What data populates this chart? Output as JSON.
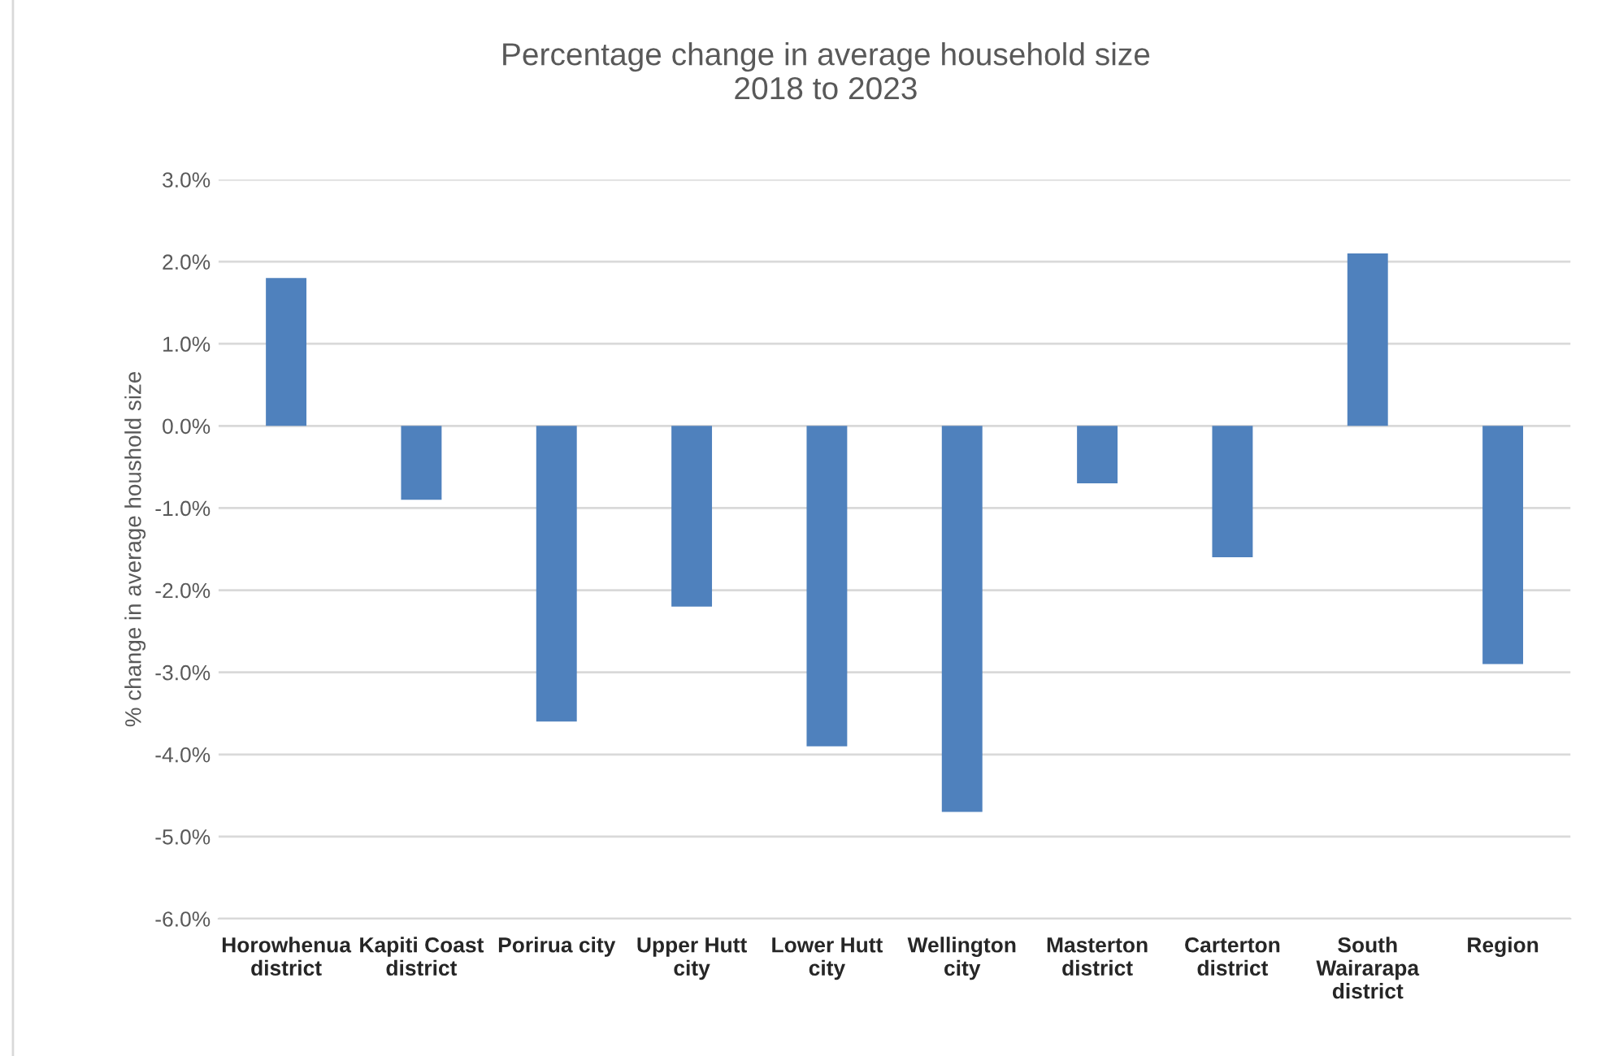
{
  "chart_data": {
    "type": "bar",
    "title": "Percentage change in average household size\n2018 to 2023",
    "ylabel": "% change in average houshold size",
    "categories": [
      "Horowhenua\ndistrict",
      "Kapiti Coast\ndistrict",
      "Porirua city",
      "Upper Hutt\ncity",
      "Lower Hutt\ncity",
      "Wellington\ncity",
      "Masterton\ndistrict",
      "Carterton\ndistrict",
      "South\nWairarapa\ndistrict",
      "Region"
    ],
    "values": [
      1.8,
      -0.9,
      -3.6,
      -2.2,
      -3.9,
      -4.7,
      -0.7,
      -1.6,
      2.1,
      -2.9
    ],
    "color": "#4f81bd",
    "ylim": [
      -6.0,
      3.0
    ],
    "yticks": [
      {
        "value": 3.0,
        "label": "3.0%"
      },
      {
        "value": 2.0,
        "label": "2.0%"
      },
      {
        "value": 1.0,
        "label": "1.0%"
      },
      {
        "value": 0.0,
        "label": "0.0%"
      },
      {
        "value": -1.0,
        "label": "-1.0%"
      },
      {
        "value": -2.0,
        "label": "-2.0%"
      },
      {
        "value": -3.0,
        "label": "-3.0%"
      },
      {
        "value": -4.0,
        "label": "-4.0%"
      },
      {
        "value": -5.0,
        "label": "-5.0%"
      },
      {
        "value": -6.0,
        "label": "-6.0%"
      }
    ],
    "grid": "y",
    "legend": false
  }
}
